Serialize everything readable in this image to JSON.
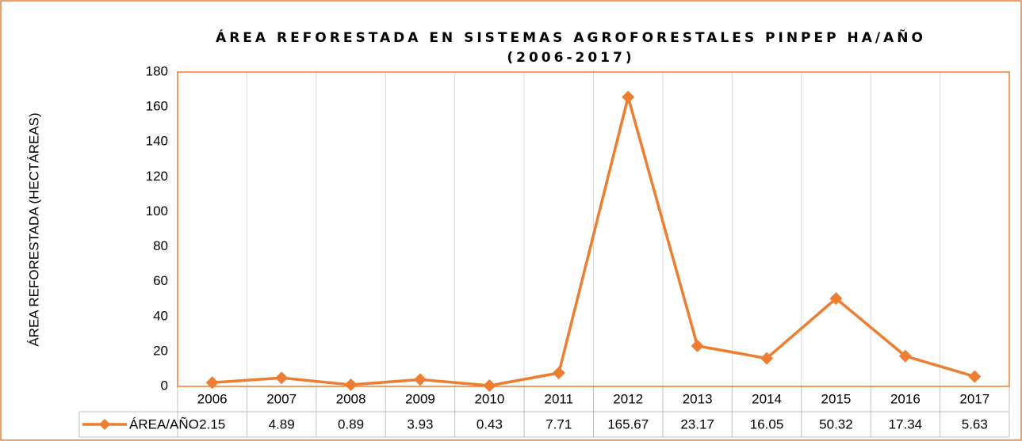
{
  "chart_data": {
    "type": "line",
    "title": [
      "ÁREA REFORESTADA EN SISTEMAS AGROFORESTALES PINPEP HA/AÑO",
      "(2006-2017)"
    ],
    "y_label": "ÁREA REFORESTADA (HECTÁREAS)",
    "categories": [
      "2006",
      "2007",
      "2008",
      "2009",
      "2010",
      "2011",
      "2012",
      "2013",
      "2014",
      "2015",
      "2016",
      "2017"
    ],
    "series": [
      {
        "name": "ÁREA/AÑO",
        "color": "#ed7d31",
        "values": [
          2.15,
          4.89,
          0.89,
          3.93,
          0.43,
          7.71,
          165.67,
          23.17,
          16.05,
          50.32,
          17.34,
          5.63
        ]
      }
    ],
    "ylim": [
      0,
      180
    ],
    "yticks": [
      0,
      20,
      40,
      60,
      80,
      100,
      120,
      140,
      160,
      180
    ],
    "grid": "vertical",
    "data_table": true
  }
}
